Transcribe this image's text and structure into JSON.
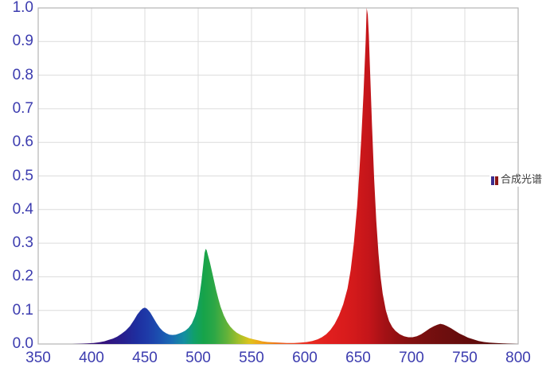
{
  "chart_data": {
    "type": "area",
    "title": "",
    "xlabel": "",
    "ylabel": "",
    "xlim": [
      350,
      800
    ],
    "ylim": [
      0,
      1.0
    ],
    "x_ticks": [
      350,
      400,
      450,
      500,
      550,
      600,
      650,
      700,
      750,
      800
    ],
    "y_tick_labels": [
      "0.0",
      "0.1",
      "0.2",
      "0.3",
      "0.4",
      "0.5",
      "0.6",
      "0.7",
      "0.8",
      "0.9",
      "1.0"
    ],
    "grid": true,
    "legend": {
      "label": "合成光谱",
      "position": "right-middle"
    },
    "series": [
      {
        "name": "合成光谱",
        "fill": "spectral-gradient",
        "points": [
          [
            350,
            0
          ],
          [
            368,
            0
          ],
          [
            382,
            0
          ],
          [
            390,
            0.001
          ],
          [
            396,
            0.002
          ],
          [
            402,
            0.003
          ],
          [
            407,
            0.005
          ],
          [
            412,
            0.008
          ],
          [
            416,
            0.012
          ],
          [
            420,
            0.016
          ],
          [
            424,
            0.022
          ],
          [
            428,
            0.03
          ],
          [
            432,
            0.04
          ],
          [
            436,
            0.053
          ],
          [
            440,
            0.072
          ],
          [
            443,
            0.088
          ],
          [
            446,
            0.1
          ],
          [
            448,
            0.106
          ],
          [
            450,
            0.108
          ],
          [
            452,
            0.105
          ],
          [
            455,
            0.094
          ],
          [
            458,
            0.078
          ],
          [
            461,
            0.062
          ],
          [
            464,
            0.048
          ],
          [
            467,
            0.038
          ],
          [
            470,
            0.032
          ],
          [
            473,
            0.028
          ],
          [
            476,
            0.027
          ],
          [
            479,
            0.028
          ],
          [
            482,
            0.031
          ],
          [
            485,
            0.035
          ],
          [
            488,
            0.04
          ],
          [
            491,
            0.048
          ],
          [
            494,
            0.061
          ],
          [
            497,
            0.083
          ],
          [
            499,
            0.105
          ],
          [
            501,
            0.138
          ],
          [
            503,
            0.185
          ],
          [
            505,
            0.243
          ],
          [
            506,
            0.271
          ],
          [
            507,
            0.283
          ],
          [
            508,
            0.279
          ],
          [
            509,
            0.266
          ],
          [
            511,
            0.243
          ],
          [
            513,
            0.215
          ],
          [
            515,
            0.186
          ],
          [
            517,
            0.158
          ],
          [
            519,
            0.133
          ],
          [
            521,
            0.111
          ],
          [
            524,
            0.085
          ],
          [
            527,
            0.066
          ],
          [
            530,
            0.052
          ],
          [
            533,
            0.042
          ],
          [
            536,
            0.034
          ],
          [
            540,
            0.027
          ],
          [
            544,
            0.022
          ],
          [
            548,
            0.017
          ],
          [
            552,
            0.014
          ],
          [
            556,
            0.011
          ],
          [
            560,
            0.008
          ],
          [
            565,
            0.006
          ],
          [
            570,
            0.005
          ],
          [
            576,
            0.004
          ],
          [
            583,
            0.003
          ],
          [
            590,
            0.003
          ],
          [
            596,
            0.004
          ],
          [
            602,
            0.006
          ],
          [
            607,
            0.009
          ],
          [
            612,
            0.014
          ],
          [
            616,
            0.02
          ],
          [
            620,
            0.029
          ],
          [
            624,
            0.042
          ],
          [
            628,
            0.06
          ],
          [
            632,
            0.085
          ],
          [
            636,
            0.118
          ],
          [
            640,
            0.165
          ],
          [
            643,
            0.22
          ],
          [
            646,
            0.3
          ],
          [
            649,
            0.41
          ],
          [
            651,
            0.505
          ],
          [
            653,
            0.615
          ],
          [
            655,
            0.745
          ],
          [
            657,
            0.9
          ],
          [
            658,
            1.0
          ],
          [
            659,
            0.98
          ],
          [
            660,
            0.92
          ],
          [
            661,
            0.83
          ],
          [
            663,
            0.65
          ],
          [
            665,
            0.49
          ],
          [
            667,
            0.365
          ],
          [
            669,
            0.27
          ],
          [
            671,
            0.2
          ],
          [
            673,
            0.15
          ],
          [
            676,
            0.1
          ],
          [
            679,
            0.068
          ],
          [
            682,
            0.05
          ],
          [
            685,
            0.039
          ],
          [
            689,
            0.029
          ],
          [
            693,
            0.023
          ],
          [
            697,
            0.02
          ],
          [
            701,
            0.02
          ],
          [
            705,
            0.023
          ],
          [
            709,
            0.029
          ],
          [
            713,
            0.037
          ],
          [
            717,
            0.046
          ],
          [
            721,
            0.053
          ],
          [
            724,
            0.057
          ],
          [
            727,
            0.06
          ],
          [
            730,
            0.058
          ],
          [
            733,
            0.054
          ],
          [
            737,
            0.047
          ],
          [
            741,
            0.039
          ],
          [
            745,
            0.031
          ],
          [
            749,
            0.025
          ],
          [
            753,
            0.019
          ],
          [
            758,
            0.014
          ],
          [
            763,
            0.009
          ],
          [
            768,
            0.006
          ],
          [
            773,
            0.004
          ],
          [
            779,
            0.003
          ],
          [
            786,
            0.002
          ],
          [
            793,
            0.001
          ],
          [
            800,
            0
          ]
        ]
      }
    ],
    "peaks": [
      {
        "wavelength_nm": 450,
        "intensity": 0.11,
        "band": "blue"
      },
      {
        "wavelength_nm": 506,
        "intensity": 0.28,
        "band": "green"
      },
      {
        "wavelength_nm": 658,
        "intensity": 1.0,
        "band": "red"
      },
      {
        "wavelength_nm": 727,
        "intensity": 0.06,
        "band": "far-red"
      }
    ],
    "spectrum_gradient": [
      [
        395,
        "#3a1476"
      ],
      [
        415,
        "#32147e"
      ],
      [
        430,
        "#27208f"
      ],
      [
        443,
        "#1e2fa0"
      ],
      [
        452,
        "#1e3aa8"
      ],
      [
        463,
        "#1c4fb0"
      ],
      [
        475,
        "#1a6cb4"
      ],
      [
        487,
        "#138fa0"
      ],
      [
        496,
        "#10a06a"
      ],
      [
        505,
        "#16a34a"
      ],
      [
        515,
        "#2ca746"
      ],
      [
        527,
        "#62b23a"
      ],
      [
        538,
        "#a3bf2b"
      ],
      [
        548,
        "#ddc31d"
      ],
      [
        557,
        "#eea81a"
      ],
      [
        566,
        "#ef8f16"
      ],
      [
        580,
        "#ec5b20"
      ],
      [
        600,
        "#ea2e22"
      ],
      [
        625,
        "#e01e1e"
      ],
      [
        645,
        "#d41a1b"
      ],
      [
        660,
        "#c4151a"
      ],
      [
        675,
        "#a31115"
      ],
      [
        695,
        "#871010"
      ],
      [
        715,
        "#770f0f"
      ],
      [
        732,
        "#6d0e0e"
      ],
      [
        755,
        "#620c0c"
      ],
      [
        800,
        "#570b0b"
      ]
    ]
  },
  "style": {
    "background": "#ffffff",
    "axis_label_color": "#3c3caf",
    "grid_color": "#dcdcdc",
    "frame_color": "#b3b3b3",
    "legend_text_color": "#3a3a3a",
    "legend_icon_colors": [
      "#3b2d8f",
      "#8b1616"
    ]
  }
}
